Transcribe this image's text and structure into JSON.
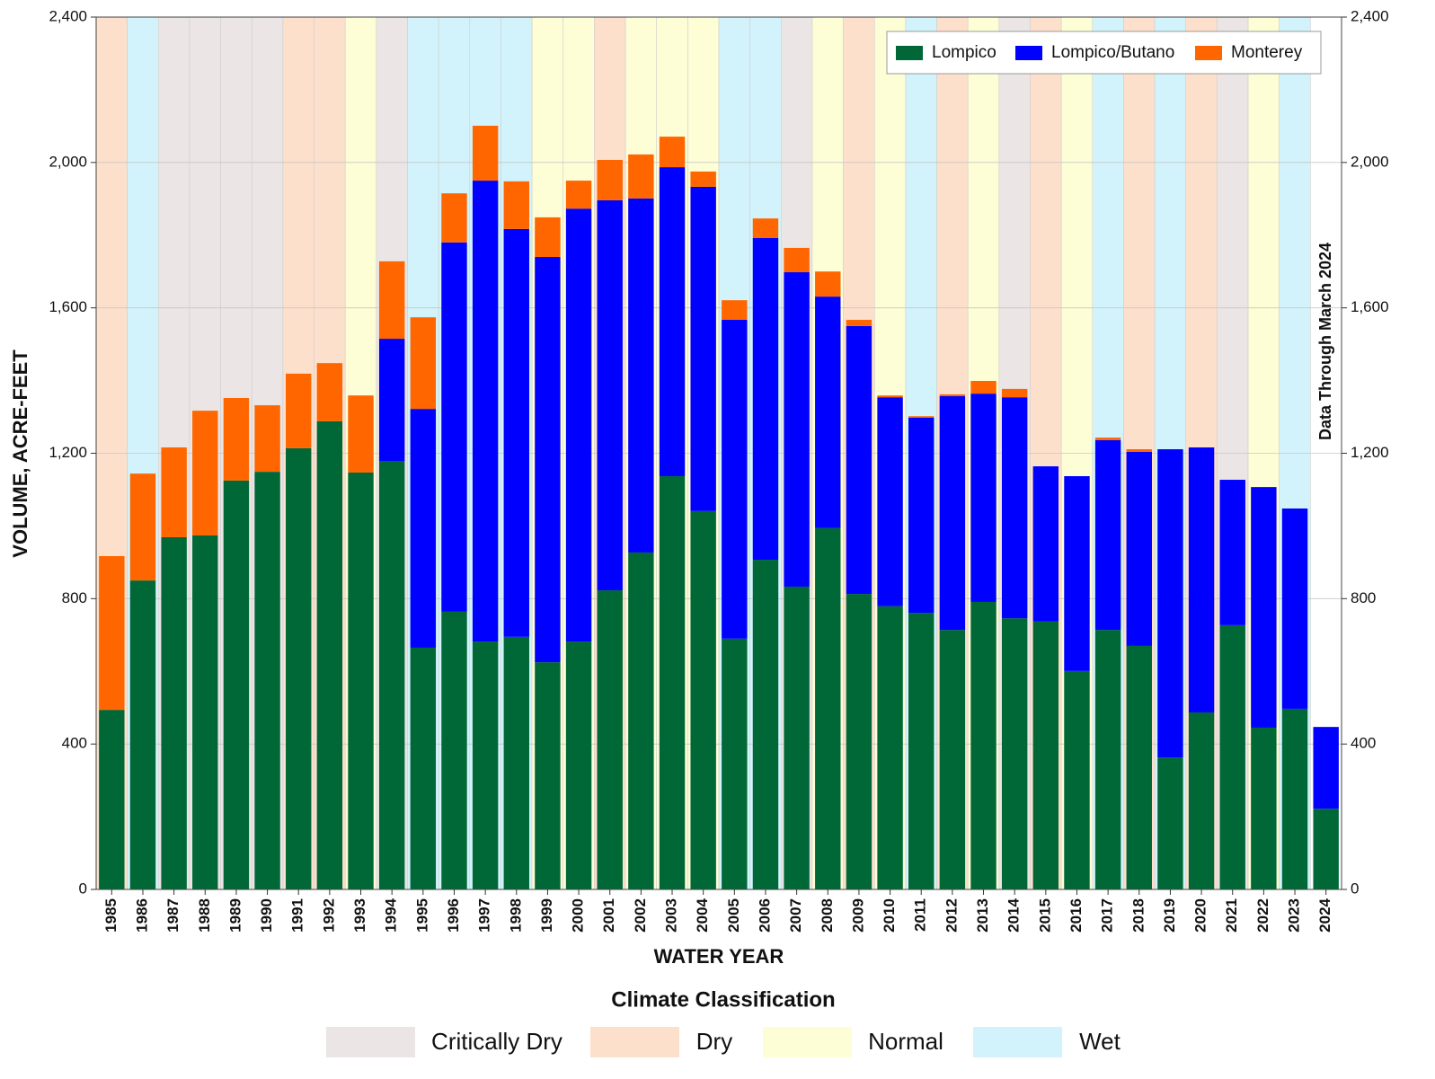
{
  "chart_data": {
    "type": "stacked_bar",
    "x_label": "WATER YEAR",
    "y_label": "VOLUME, ACRE-FEET",
    "annotation": "Data Through March 2024",
    "categories": [
      "1985",
      "1986",
      "1987",
      "1988",
      "1989",
      "1990",
      "1991",
      "1992",
      "1993",
      "1994",
      "1995",
      "1996",
      "1997",
      "1998",
      "1999",
      "2000",
      "2001",
      "2002",
      "2003",
      "2004",
      "2005",
      "2006",
      "2007",
      "2008",
      "2009",
      "2010",
      "2011",
      "2012",
      "2013",
      "2014",
      "2015",
      "2016",
      "2017",
      "2018",
      "2019",
      "2020",
      "2021",
      "2022",
      "2023",
      "2024"
    ],
    "series": [
      {
        "name": "Lompico",
        "color": "#006837",
        "values": [
          494,
          850,
          969,
          974,
          1125,
          1149,
          1214,
          1288,
          1147,
          1179,
          665,
          764,
          682,
          695,
          625,
          682,
          823,
          927,
          1137,
          1041,
          690,
          907,
          833,
          994,
          813,
          779,
          761,
          714,
          791,
          746,
          737,
          601,
          714,
          670,
          363,
          487,
          727,
          445,
          497,
          222
        ]
      },
      {
        "name": "Lompico/Butano",
        "color": "#0000ff",
        "values": [
          0,
          0,
          0,
          0,
          0,
          0,
          0,
          0,
          0,
          336,
          657,
          1016,
          1268,
          1122,
          1115,
          1191,
          1073,
          974,
          850,
          892,
          877,
          885,
          865,
          637,
          737,
          575,
          537,
          643,
          573,
          608,
          427,
          536,
          522,
          534,
          848,
          729,
          400,
          662,
          551,
          225
        ]
      },
      {
        "name": "Monterey",
        "color": "#ff6600",
        "values": [
          423,
          294,
          247,
          343,
          227,
          183,
          205,
          160,
          212,
          213,
          252,
          135,
          151,
          131,
          109,
          77,
          111,
          121,
          84,
          42,
          54,
          54,
          67,
          69,
          17,
          5,
          4,
          5,
          35,
          23,
          0,
          0,
          7,
          7,
          0,
          0,
          0,
          0,
          0,
          0
        ]
      }
    ],
    "climate_title": "Climate Classification",
    "climate_classes": [
      {
        "name": "Critically Dry",
        "color": "#ebe5e5"
      },
      {
        "name": "Dry",
        "color": "#fde0cc"
      },
      {
        "name": "Normal",
        "color": "#fdfdd6"
      },
      {
        "name": "Wet",
        "color": "#d2f3fb"
      }
    ],
    "climate": [
      "Dry",
      "Wet",
      "Critically Dry",
      "Critically Dry",
      "Critically Dry",
      "Critically Dry",
      "Dry",
      "Dry",
      "Normal",
      "Critically Dry",
      "Wet",
      "Wet",
      "Wet",
      "Wet",
      "Normal",
      "Normal",
      "Dry",
      "Normal",
      "Normal",
      "Normal",
      "Wet",
      "Wet",
      "Critically Dry",
      "Normal",
      "Dry",
      "Normal",
      "Wet",
      "Dry",
      "Normal",
      "Critically Dry",
      "Dry",
      "Normal",
      "Wet",
      "Dry",
      "Wet",
      "Dry",
      "Critically Dry",
      "Normal",
      "Wet",
      null
    ],
    "ylim": [
      0,
      2400
    ],
    "yticks": [
      0,
      400,
      800,
      {
        "value": 1200,
        "label": "1,200"
      },
      {
        "value": 1600,
        "label": "1,600"
      },
      {
        "value": 2000,
        "label": "2,000"
      },
      {
        "value": 2400,
        "label": "2,400"
      }
    ],
    "y2lim": [
      0,
      2400
    ],
    "y2ticks": [
      0,
      400,
      800,
      {
        "value": 1200,
        "label": "1,200"
      },
      {
        "value": 1600,
        "label": "1,600"
      },
      {
        "value": 2000,
        "label": "2,000"
      },
      {
        "value": 2400,
        "label": "2,400"
      }
    ],
    "grid": true,
    "legend": "upper right"
  }
}
